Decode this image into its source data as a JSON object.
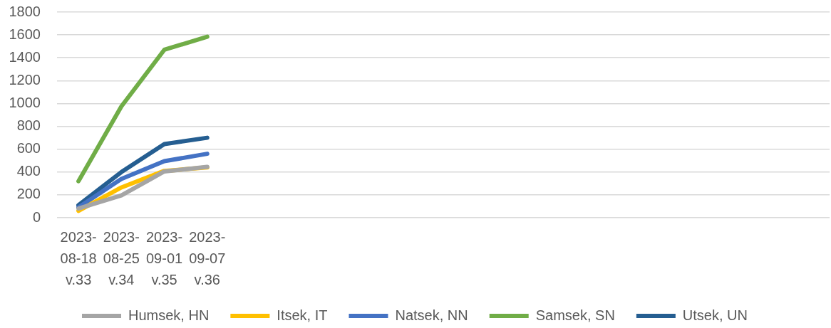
{
  "chart_data": {
    "type": "line",
    "categories": [
      "2023-08-18 v.33",
      "2023-08-25 v.34",
      "2023-09-01 v.35",
      "2023-09-07 v.36",
      null,
      null,
      null,
      null,
      null,
      null,
      null,
      null,
      null,
      null,
      null,
      null,
      null,
      null
    ],
    "series": [
      {
        "name": "Humsek, HN",
        "color": "#a5a5a5",
        "values": [
          80,
          195,
          405,
          445,
          null,
          null,
          null,
          null,
          null,
          null,
          null,
          null,
          null,
          null,
          null,
          null,
          null,
          null
        ]
      },
      {
        "name": "Itsek, IT",
        "color": "#ffc000",
        "values": [
          60,
          265,
          410,
          440,
          null,
          null,
          null,
          null,
          null,
          null,
          null,
          null,
          null,
          null,
          null,
          null,
          null,
          null
        ]
      },
      {
        "name": "Natsek, NN",
        "color": "#4472c4",
        "values": [
          90,
          340,
          495,
          560,
          null,
          null,
          null,
          null,
          null,
          null,
          null,
          null,
          null,
          null,
          null,
          null,
          null,
          null
        ]
      },
      {
        "name": "Samsek, SN",
        "color": "#70ad47",
        "values": [
          320,
          975,
          1470,
          1585,
          null,
          null,
          null,
          null,
          null,
          null,
          null,
          null,
          null,
          null,
          null,
          null,
          null,
          null
        ]
      },
      {
        "name": "Utsek, UN",
        "color": "#255e91",
        "values": [
          110,
          400,
          645,
          700,
          null,
          null,
          null,
          null,
          null,
          null,
          null,
          null,
          null,
          null,
          null,
          null,
          null,
          null
        ]
      }
    ],
    "ylim": [
      0,
      1800
    ],
    "yticks": [
      0,
      200,
      400,
      600,
      800,
      1000,
      1200,
      1400,
      1600,
      1800
    ],
    "grid": "y",
    "legend": "bottom",
    "marker": "none",
    "line_style": "solid"
  }
}
